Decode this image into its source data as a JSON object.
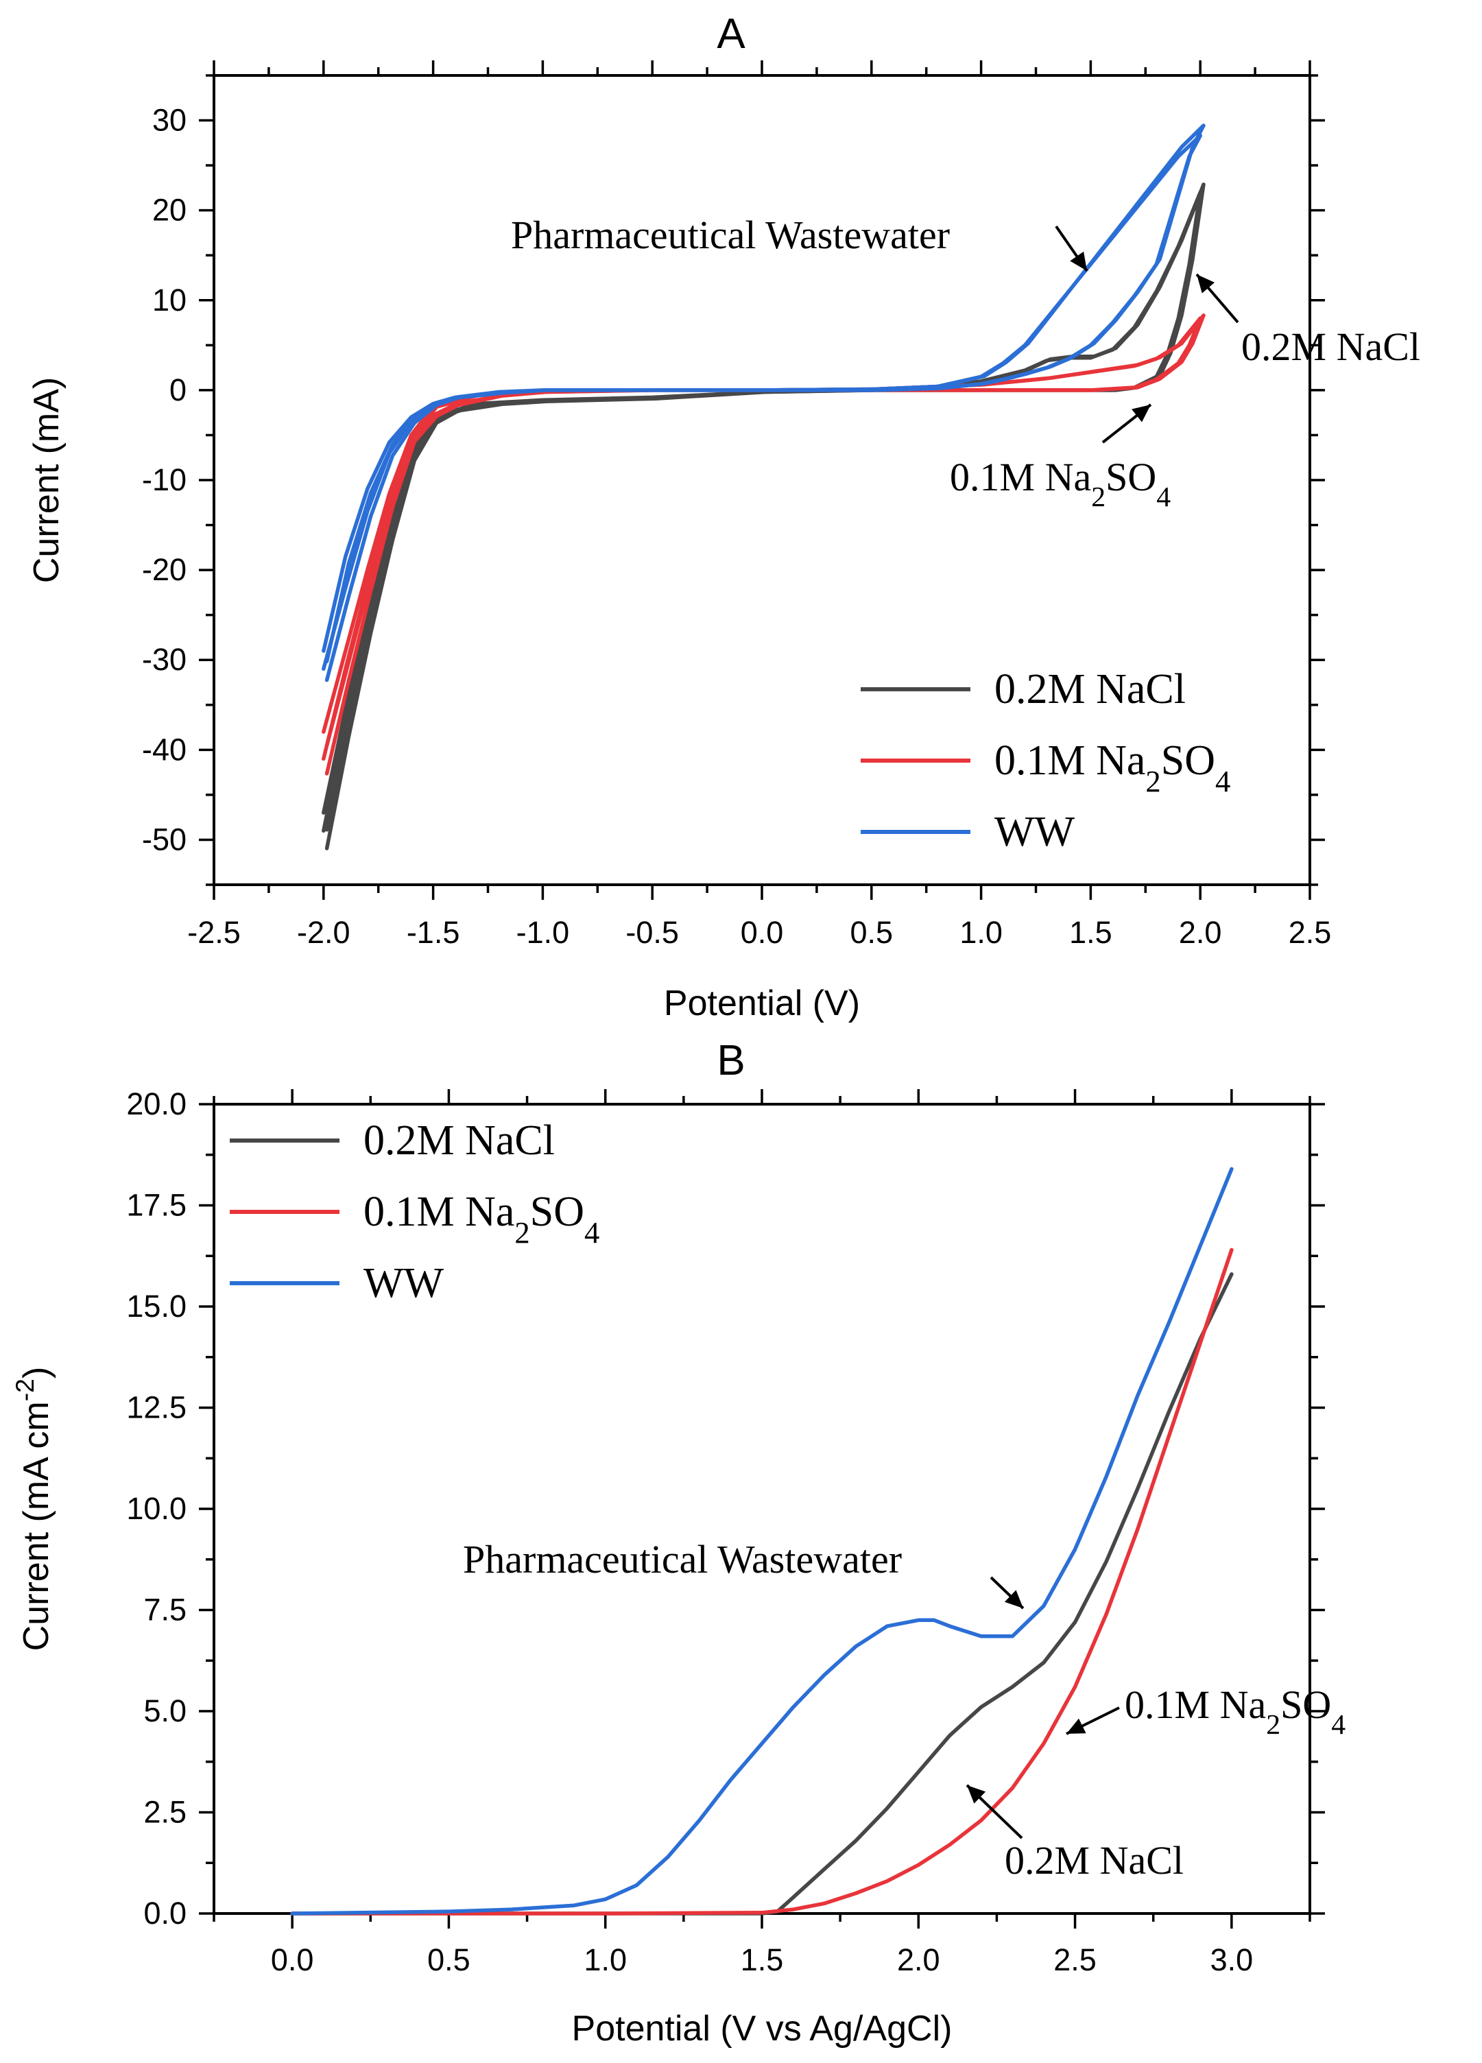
{
  "chart_data": [
    {
      "panel": "A",
      "type": "line",
      "title": "A",
      "xlabel": "Potential (V)",
      "ylabel": "Current (mA)",
      "xlim": [
        -2.5,
        2.5
      ],
      "ylim": [
        -55,
        35
      ],
      "xticks": [
        -2.5,
        -2.0,
        -1.5,
        -1.0,
        -0.5,
        0.0,
        0.5,
        1.0,
        1.5,
        2.0,
        2.5
      ],
      "yticks": [
        -50,
        -40,
        -30,
        -20,
        -10,
        0,
        10,
        20,
        30
      ],
      "xtick_labels": [
        "-2.5",
        "-2.0",
        "-1.5",
        "-1.0",
        "-0.5",
        "0.0",
        "0.5",
        "1.0",
        "1.5",
        "2.0",
        "2.5"
      ],
      "ytick_labels": [
        "-50",
        "-40",
        "-30",
        "-20",
        "-10",
        "0",
        "10",
        "20",
        "30"
      ],
      "legend_position": "bottom-right",
      "series": [
        {
          "name": "0.2M NaCl",
          "legend_main": "0.2M NaCl",
          "legend_sub": "",
          "legend_tail": "",
          "color": "#474747",
          "loops": [
            {
              "x": [
                -2.0,
                -1.9,
                -1.8,
                -1.7,
                -1.6,
                -1.5,
                -1.4,
                -1.2,
                -1.0,
                -0.5,
                0.0,
                0.5,
                0.8,
                1.0,
                1.2,
                1.3,
                1.4,
                1.5,
                1.6,
                1.7,
                1.8,
                1.9,
                2.0,
                1.95,
                1.9,
                1.85,
                1.8,
                1.7,
                1.6,
                1.5,
                1.3,
                1.0,
                0.5,
                0.0,
                -0.5,
                -1.0,
                -1.3,
                -1.5,
                -1.6,
                -1.7,
                -1.8,
                -1.9,
                -2.0
              ],
              "y": [
                -49.0,
                -37.0,
                -26.0,
                -16.0,
                -7.5,
                -3.5,
                -2.2,
                -1.5,
                -1.2,
                -0.9,
                -0.2,
                0.0,
                0.3,
                1.0,
                2.2,
                3.3,
                3.6,
                3.6,
                4.5,
                7.0,
                11.0,
                16.0,
                22.0,
                14.0,
                8.0,
                4.0,
                1.5,
                0.3,
                0.0,
                0.0,
                0.0,
                0.0,
                0.0,
                -0.2,
                -0.8,
                -1.1,
                -1.5,
                -3.0,
                -7.0,
                -14.5,
                -25.0,
                -35.5,
                -47.0
              ]
            }
          ]
        },
        {
          "name": "0.1M Na2SO4",
          "legend_main": "0.1M Na",
          "legend_sub": "2",
          "legend_tail": "SO",
          "legend_sub2": "4",
          "color": "#e8343a",
          "loops": [
            {
              "x": [
                -2.0,
                -1.9,
                -1.8,
                -1.7,
                -1.6,
                -1.5,
                -1.4,
                -1.2,
                -1.0,
                -0.5,
                0.0,
                0.5,
                1.0,
                1.3,
                1.5,
                1.7,
                1.8,
                1.9,
                2.0,
                1.95,
                1.9,
                1.8,
                1.7,
                1.5,
                1.0,
                0.5,
                0.0,
                -0.5,
                -1.0,
                -1.3,
                -1.5,
                -1.6,
                -1.7,
                -1.8,
                -1.9,
                -2.0
              ],
              "y": [
                -41.0,
                -31.0,
                -21.5,
                -12.5,
                -5.5,
                -2.8,
                -1.6,
                -0.6,
                -0.2,
                0.0,
                0.0,
                0.1,
                0.6,
                1.3,
                2.0,
                2.7,
                3.5,
                5.0,
                8.0,
                5.0,
                3.0,
                1.2,
                0.3,
                0.0,
                0.0,
                0.0,
                0.0,
                0.0,
                -0.2,
                -0.5,
                -1.8,
                -5.0,
                -11.5,
                -20.0,
                -29.0,
                -38.0
              ]
            }
          ]
        },
        {
          "name": "WW",
          "legend_main": "WW",
          "legend_sub": "",
          "legend_tail": "",
          "color": "#2b6fd6",
          "loops": [
            {
              "x": [
                -2.0,
                -1.9,
                -1.8,
                -1.7,
                -1.6,
                -1.5,
                -1.4,
                -1.2,
                -1.0,
                -0.5,
                0.0,
                0.5,
                0.8,
                1.0,
                1.1,
                1.2,
                1.3,
                1.4,
                1.5,
                1.6,
                1.7,
                1.8,
                1.9,
                2.0,
                1.95,
                1.9,
                1.85,
                1.8,
                1.7,
                1.6,
                1.5,
                1.4,
                1.3,
                1.2,
                1.1,
                1.0,
                0.8,
                0.5,
                0.0,
                -0.5,
                -1.0,
                -1.2,
                -1.4,
                -1.5,
                -1.6,
                -1.7,
                -1.8,
                -1.9,
                -2.0
              ],
              "y": [
                -31.0,
                -22.0,
                -13.5,
                -7.0,
                -3.5,
                -1.6,
                -0.8,
                -0.2,
                0.0,
                0.0,
                0.0,
                0.1,
                0.4,
                1.5,
                3.0,
                5.0,
                8.0,
                11.0,
                14.0,
                17.0,
                20.0,
                23.0,
                26.0,
                28.3,
                26.0,
                22.0,
                18.0,
                14.0,
                10.5,
                7.5,
                5.0,
                3.5,
                2.5,
                1.8,
                1.2,
                0.7,
                0.2,
                0.0,
                0.0,
                0.0,
                0.0,
                -0.3,
                -0.8,
                -1.5,
                -3.0,
                -5.8,
                -11.0,
                -18.5,
                -29.0
              ]
            }
          ]
        }
      ],
      "annotations": [
        {
          "name": "pharma-ww-annotation",
          "text": "Pharmaceutical Wastewater",
          "sub": "",
          "tail": "",
          "sub2": ""
        },
        {
          "name": "nacl-annotation",
          "text": "0.2M NaCl",
          "sub": "",
          "tail": "",
          "sub2": ""
        },
        {
          "name": "na2so4-annotation",
          "text": "0.1M Na",
          "sub": "2",
          "tail": "SO",
          "sub2": "4"
        }
      ]
    },
    {
      "panel": "B",
      "type": "line",
      "title": "B",
      "xlabel": "Potential (V vs Ag/AgCl)",
      "ylabel_main": "Current (mA cm",
      "ylabel_sup": "-2",
      "ylabel_tail": ")",
      "xlim": [
        -0.25,
        3.25
      ],
      "ylim": [
        0,
        20
      ],
      "xticks": [
        0.0,
        0.5,
        1.0,
        1.5,
        2.0,
        2.5,
        3.0
      ],
      "yticks": [
        0.0,
        2.5,
        5.0,
        7.5,
        10.0,
        12.5,
        15.0,
        17.5,
        20.0
      ],
      "xtick_labels": [
        "0.0",
        "0.5",
        "1.0",
        "1.5",
        "2.0",
        "2.5",
        "3.0"
      ],
      "ytick_labels": [
        "0.0",
        "2.5",
        "5.0",
        "7.5",
        "10.0",
        "12.5",
        "15.0",
        "17.5",
        "20.0"
      ],
      "legend_position": "top-left",
      "series": [
        {
          "name": "0.2M NaCl",
          "legend_main": "0.2M NaCl",
          "legend_sub": "",
          "legend_tail": "",
          "color": "#474747",
          "x": [
            0.0,
            1.0,
            1.5,
            1.55,
            1.6,
            1.7,
            1.8,
            1.9,
            2.0,
            2.1,
            2.2,
            2.3,
            2.4,
            2.5,
            2.6,
            2.7,
            2.8,
            2.9,
            3.0
          ],
          "y": [
            0.0,
            0.0,
            0.0,
            0.05,
            0.4,
            1.1,
            1.8,
            2.6,
            3.5,
            4.4,
            5.1,
            5.6,
            6.2,
            7.2,
            8.7,
            10.5,
            12.4,
            14.2,
            15.8
          ]
        },
        {
          "name": "0.1M Na2SO4",
          "legend_main": "0.1M Na",
          "legend_sub": "2",
          "legend_tail": "SO",
          "legend_sub2": "4",
          "color": "#e8343a",
          "x": [
            0.0,
            1.0,
            1.5,
            1.6,
            1.7,
            1.8,
            1.9,
            2.0,
            2.1,
            2.2,
            2.3,
            2.4,
            2.5,
            2.6,
            2.7,
            2.8,
            2.9,
            3.0
          ],
          "y": [
            0.0,
            0.0,
            0.02,
            0.1,
            0.25,
            0.5,
            0.8,
            1.2,
            1.7,
            2.3,
            3.1,
            4.2,
            5.6,
            7.4,
            9.5,
            11.8,
            14.1,
            16.4
          ]
        },
        {
          "name": "WW",
          "legend_main": "WW",
          "legend_sub": "",
          "legend_tail": "",
          "color": "#2b6fd6",
          "x": [
            0.0,
            0.5,
            0.7,
            0.9,
            1.0,
            1.1,
            1.2,
            1.3,
            1.4,
            1.5,
            1.6,
            1.7,
            1.8,
            1.9,
            2.0,
            2.05,
            2.1,
            2.2,
            2.3,
            2.4,
            2.5,
            2.6,
            2.7,
            2.8,
            2.9,
            3.0
          ],
          "y": [
            0.0,
            0.05,
            0.1,
            0.2,
            0.35,
            0.7,
            1.4,
            2.3,
            3.3,
            4.2,
            5.1,
            5.9,
            6.6,
            7.1,
            7.25,
            7.25,
            7.1,
            6.85,
            6.85,
            7.6,
            9.0,
            10.8,
            12.8,
            14.6,
            16.5,
            18.4
          ]
        }
      ],
      "annotations": [
        {
          "name": "pharma-ww-annotation-b",
          "text": "Pharmaceutical Wastewater",
          "sub": "",
          "tail": "",
          "sub2": ""
        },
        {
          "name": "na2so4-annotation-b",
          "text": "0.1M Na",
          "sub": "2",
          "tail": "SO",
          "sub2": "4"
        },
        {
          "name": "nacl-annotation-b",
          "text": "0.2M NaCl",
          "sub": "",
          "tail": "",
          "sub2": ""
        }
      ]
    }
  ]
}
